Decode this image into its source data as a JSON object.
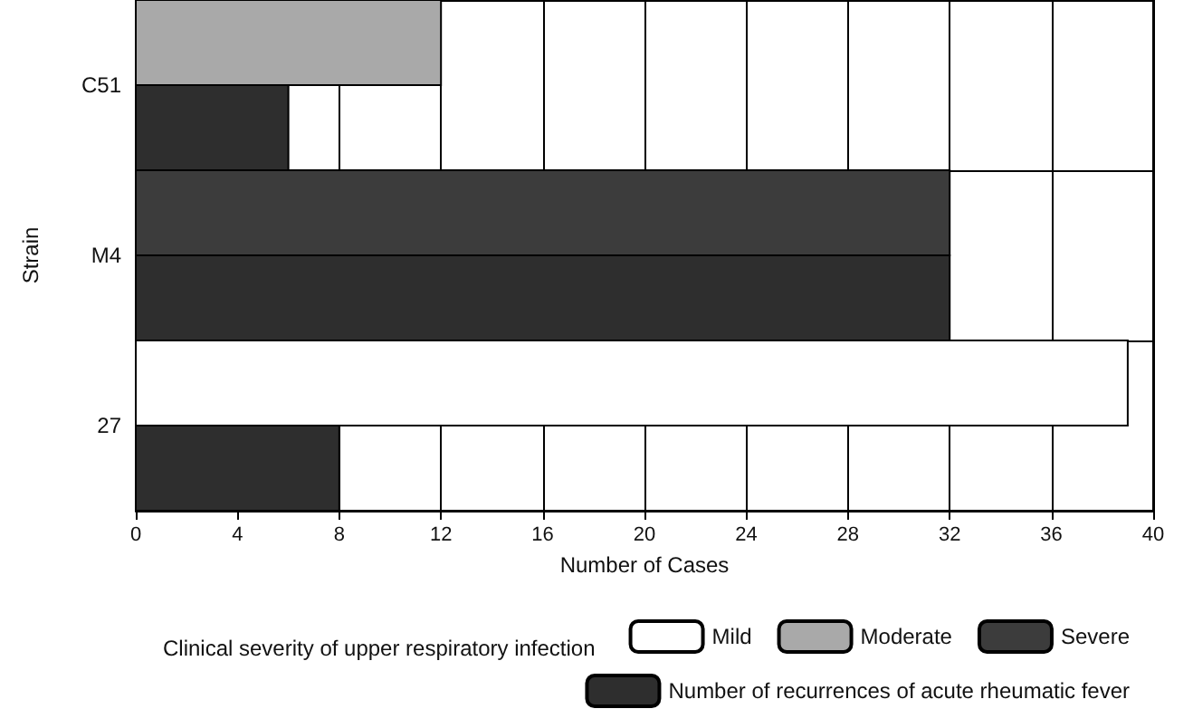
{
  "chart_data": {
    "type": "bar",
    "orientation": "horizontal",
    "ylabel": "Strain",
    "xlabel": "Number of Cases",
    "legend_title": "Clinical severity of upper respiratory infection",
    "legend": "bottom",
    "grid": "x",
    "categories": [
      "C51",
      "M4",
      "27"
    ],
    "series": [
      {
        "name": "Mild",
        "color": "#ffffff",
        "values": [
          null,
          null,
          39
        ]
      },
      {
        "name": "Moderate",
        "color": "#a9a9a9",
        "values": [
          12,
          null,
          null
        ]
      },
      {
        "name": "Severe",
        "color": "#3c3c3c",
        "values": [
          null,
          32,
          null
        ]
      },
      {
        "name": "Number of recurrences of acute rheumatic fever",
        "color": "#2e2e2e",
        "values": [
          6,
          32,
          8
        ]
      }
    ],
    "xlim": [
      0,
      40
    ],
    "xticks": [
      0,
      4,
      8,
      12,
      16,
      20,
      24,
      28,
      32,
      36,
      40
    ]
  }
}
